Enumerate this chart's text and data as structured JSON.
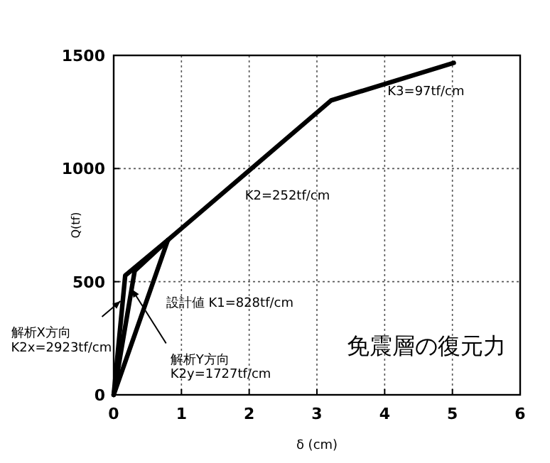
{
  "chart_data": {
    "type": "line",
    "xlabel": "δ (cm)",
    "ylabel": "Q(tf)",
    "xlim": [
      0,
      6
    ],
    "ylim": [
      0,
      1500
    ],
    "xticks": [
      0,
      1,
      2,
      3,
      4,
      5,
      6
    ],
    "yticks": [
      0,
      500,
      1000,
      1500
    ],
    "grid": true,
    "line_style": "solid",
    "marker": "none",
    "series": [
      {
        "color": "#000000",
        "x": [
          0,
          0.8,
          3.21,
          5.02
        ],
        "values": [
          0,
          684,
          1301,
          1467
        ]
      },
      {
        "color": "#000000",
        "x": [
          0,
          0.17,
          0.8
        ],
        "values": [
          0,
          527,
          684
        ]
      },
      {
        "color": "#000000",
        "x": [
          0,
          0.31,
          0.8
        ],
        "values": [
          0,
          548,
          684
        ]
      }
    ],
    "annotations": [
      {
        "text": "K3=97tf/cm",
        "x": 4,
        "y": 1374
      },
      {
        "text": "K2=252tf/cm",
        "x": 2,
        "y": 990
      },
      {
        "text": "設計値 K1=828tf/cm",
        "x": 0.5,
        "y": 427
      },
      {
        "text": "解析X方向\nK2x=2923tf/cm",
        "x": 0.1,
        "y": 414
      },
      {
        "text": "解析Y方向\nK2y=1727tf/cm",
        "x": 0.27,
        "y": 466
      },
      "免震層の復元力"
    ]
  }
}
